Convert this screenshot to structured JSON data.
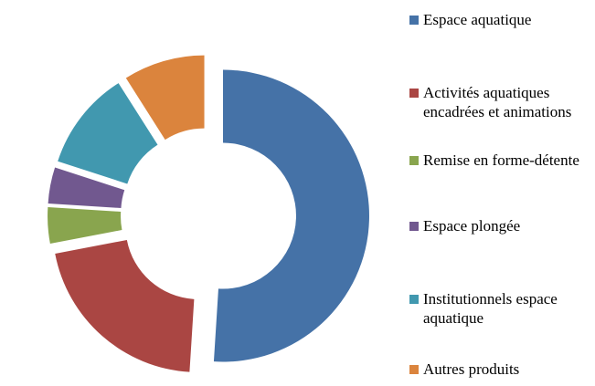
{
  "chart_data": {
    "type": "donut",
    "categories": [
      "Espace aquatique",
      "Activités aquatiques encadrées et animations",
      "Remise en forme-détente",
      "Espace plongée",
      "Institutionnels espace aquatique",
      "Autres produits"
    ],
    "values": [
      51,
      21,
      4,
      4,
      11,
      9
    ],
    "colors": [
      "#4572a7",
      "#aa4643",
      "#89a54e",
      "#71588f",
      "#4198af",
      "#db843d"
    ],
    "legend": "right"
  }
}
